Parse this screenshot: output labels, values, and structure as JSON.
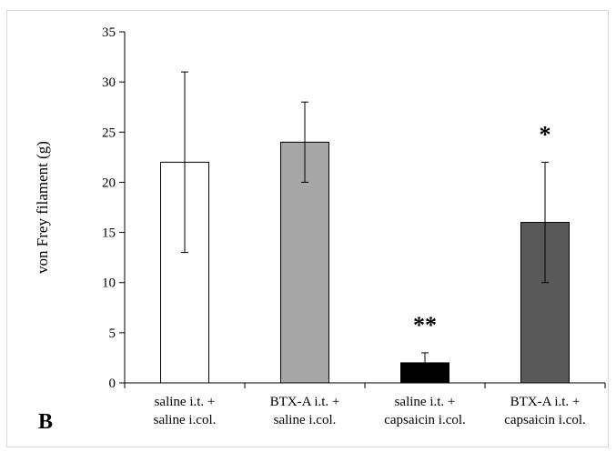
{
  "panel_label": "B",
  "chart_data": {
    "type": "bar",
    "ylabel": "von Frey filament (g)",
    "xlabel": "",
    "ylim": [
      0,
      35
    ],
    "yticks": [
      0,
      5,
      10,
      15,
      20,
      25,
      30,
      35
    ],
    "categories": [
      [
        "saline i.t. +",
        "saline i.col."
      ],
      [
        "BTX-A i.t. +",
        "saline i.col."
      ],
      [
        "saline i.t. +",
        "capsaicin i.col."
      ],
      [
        "BTX-A i.t. +",
        "capsaicin i.col."
      ]
    ],
    "values": [
      22,
      24,
      2,
      16
    ],
    "errors": [
      9,
      4,
      1,
      6
    ],
    "colors": [
      "#ffffff",
      "#a6a6a6",
      "#000000",
      "#595959"
    ],
    "significance": [
      "",
      "",
      "**",
      "*"
    ],
    "grid": false
  }
}
